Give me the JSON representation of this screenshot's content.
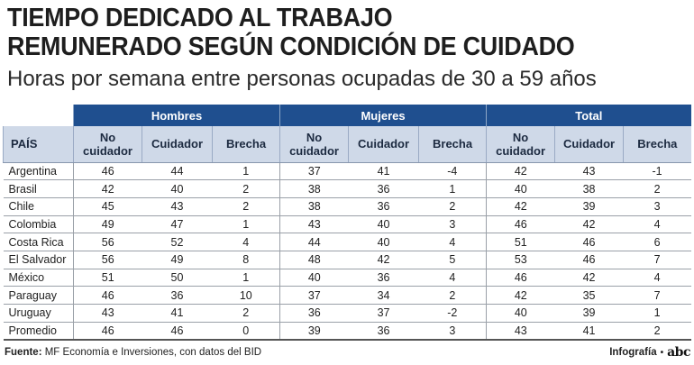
{
  "header": {
    "title_line1": "TIEMPO DEDICADO AL TRABAJO",
    "title_line2": "REMUNERADO SEGÚN CONDICIÓN DE CUIDADO",
    "subtitle": "Horas por semana entre personas ocupadas de 30 a 59 años"
  },
  "table": {
    "groups": [
      "Hombres",
      "Mujeres",
      "Total"
    ],
    "country_header": "PAÍS",
    "sub_headers": {
      "no_cuidador_1": "No",
      "no_cuidador_2": "cuidador",
      "cuidador": "Cuidador",
      "brecha": "Brecha"
    }
  },
  "chart_data": {
    "type": "table",
    "title": "TIEMPO DEDICADO AL TRABAJO REMUNERADO SEGÚN CONDICIÓN DE CUIDADO",
    "subtitle": "Horas por semana entre personas ocupadas de 30 a 59 años",
    "columns": [
      "PAÍS",
      "Hombres No cuidador",
      "Hombres Cuidador",
      "Hombres Brecha",
      "Mujeres No cuidador",
      "Mujeres Cuidador",
      "Mujeres Brecha",
      "Total No cuidador",
      "Total Cuidador",
      "Total Brecha"
    ],
    "rows": [
      [
        "Argentina",
        "46",
        "44",
        "1",
        "37",
        "41",
        "-4",
        "42",
        "43",
        "-1"
      ],
      [
        "Brasil",
        "42",
        "40",
        "2",
        "38",
        "36",
        "1",
        "40",
        "38",
        "2"
      ],
      [
        "Chile",
        "45",
        "43",
        "2",
        "38",
        "36",
        "2",
        "42",
        "39",
        "3"
      ],
      [
        "Colombia",
        "49",
        "47",
        "1",
        "43",
        "40",
        "3",
        "46",
        "42",
        "4"
      ],
      [
        "Costa Rica",
        "56",
        "52",
        "4",
        "44",
        "40",
        "4",
        "51",
        "46",
        "6"
      ],
      [
        "El Salvador",
        "56",
        "49",
        "8",
        "48",
        "42",
        "5",
        "53",
        "46",
        "7"
      ],
      [
        "México",
        "51",
        "50",
        "1",
        "40",
        "36",
        "4",
        "46",
        "42",
        "4"
      ],
      [
        "Paraguay",
        "46",
        "36",
        "10",
        "37",
        "34",
        "2",
        "42",
        "35",
        "7"
      ],
      [
        "Uruguay",
        "43",
        "41",
        "2",
        "36",
        "37",
        "-2",
        "40",
        "39",
        "1"
      ],
      [
        "Promedio",
        "46",
        "46",
        "0",
        "39",
        "36",
        "3",
        "43",
        "41",
        "2"
      ]
    ]
  },
  "footer": {
    "source_label": "Fuente:",
    "source_text": " MF Economía e Inversiones, con datos del BID",
    "credit": "Infografía",
    "credit_sep": "•",
    "logo": "abc"
  }
}
